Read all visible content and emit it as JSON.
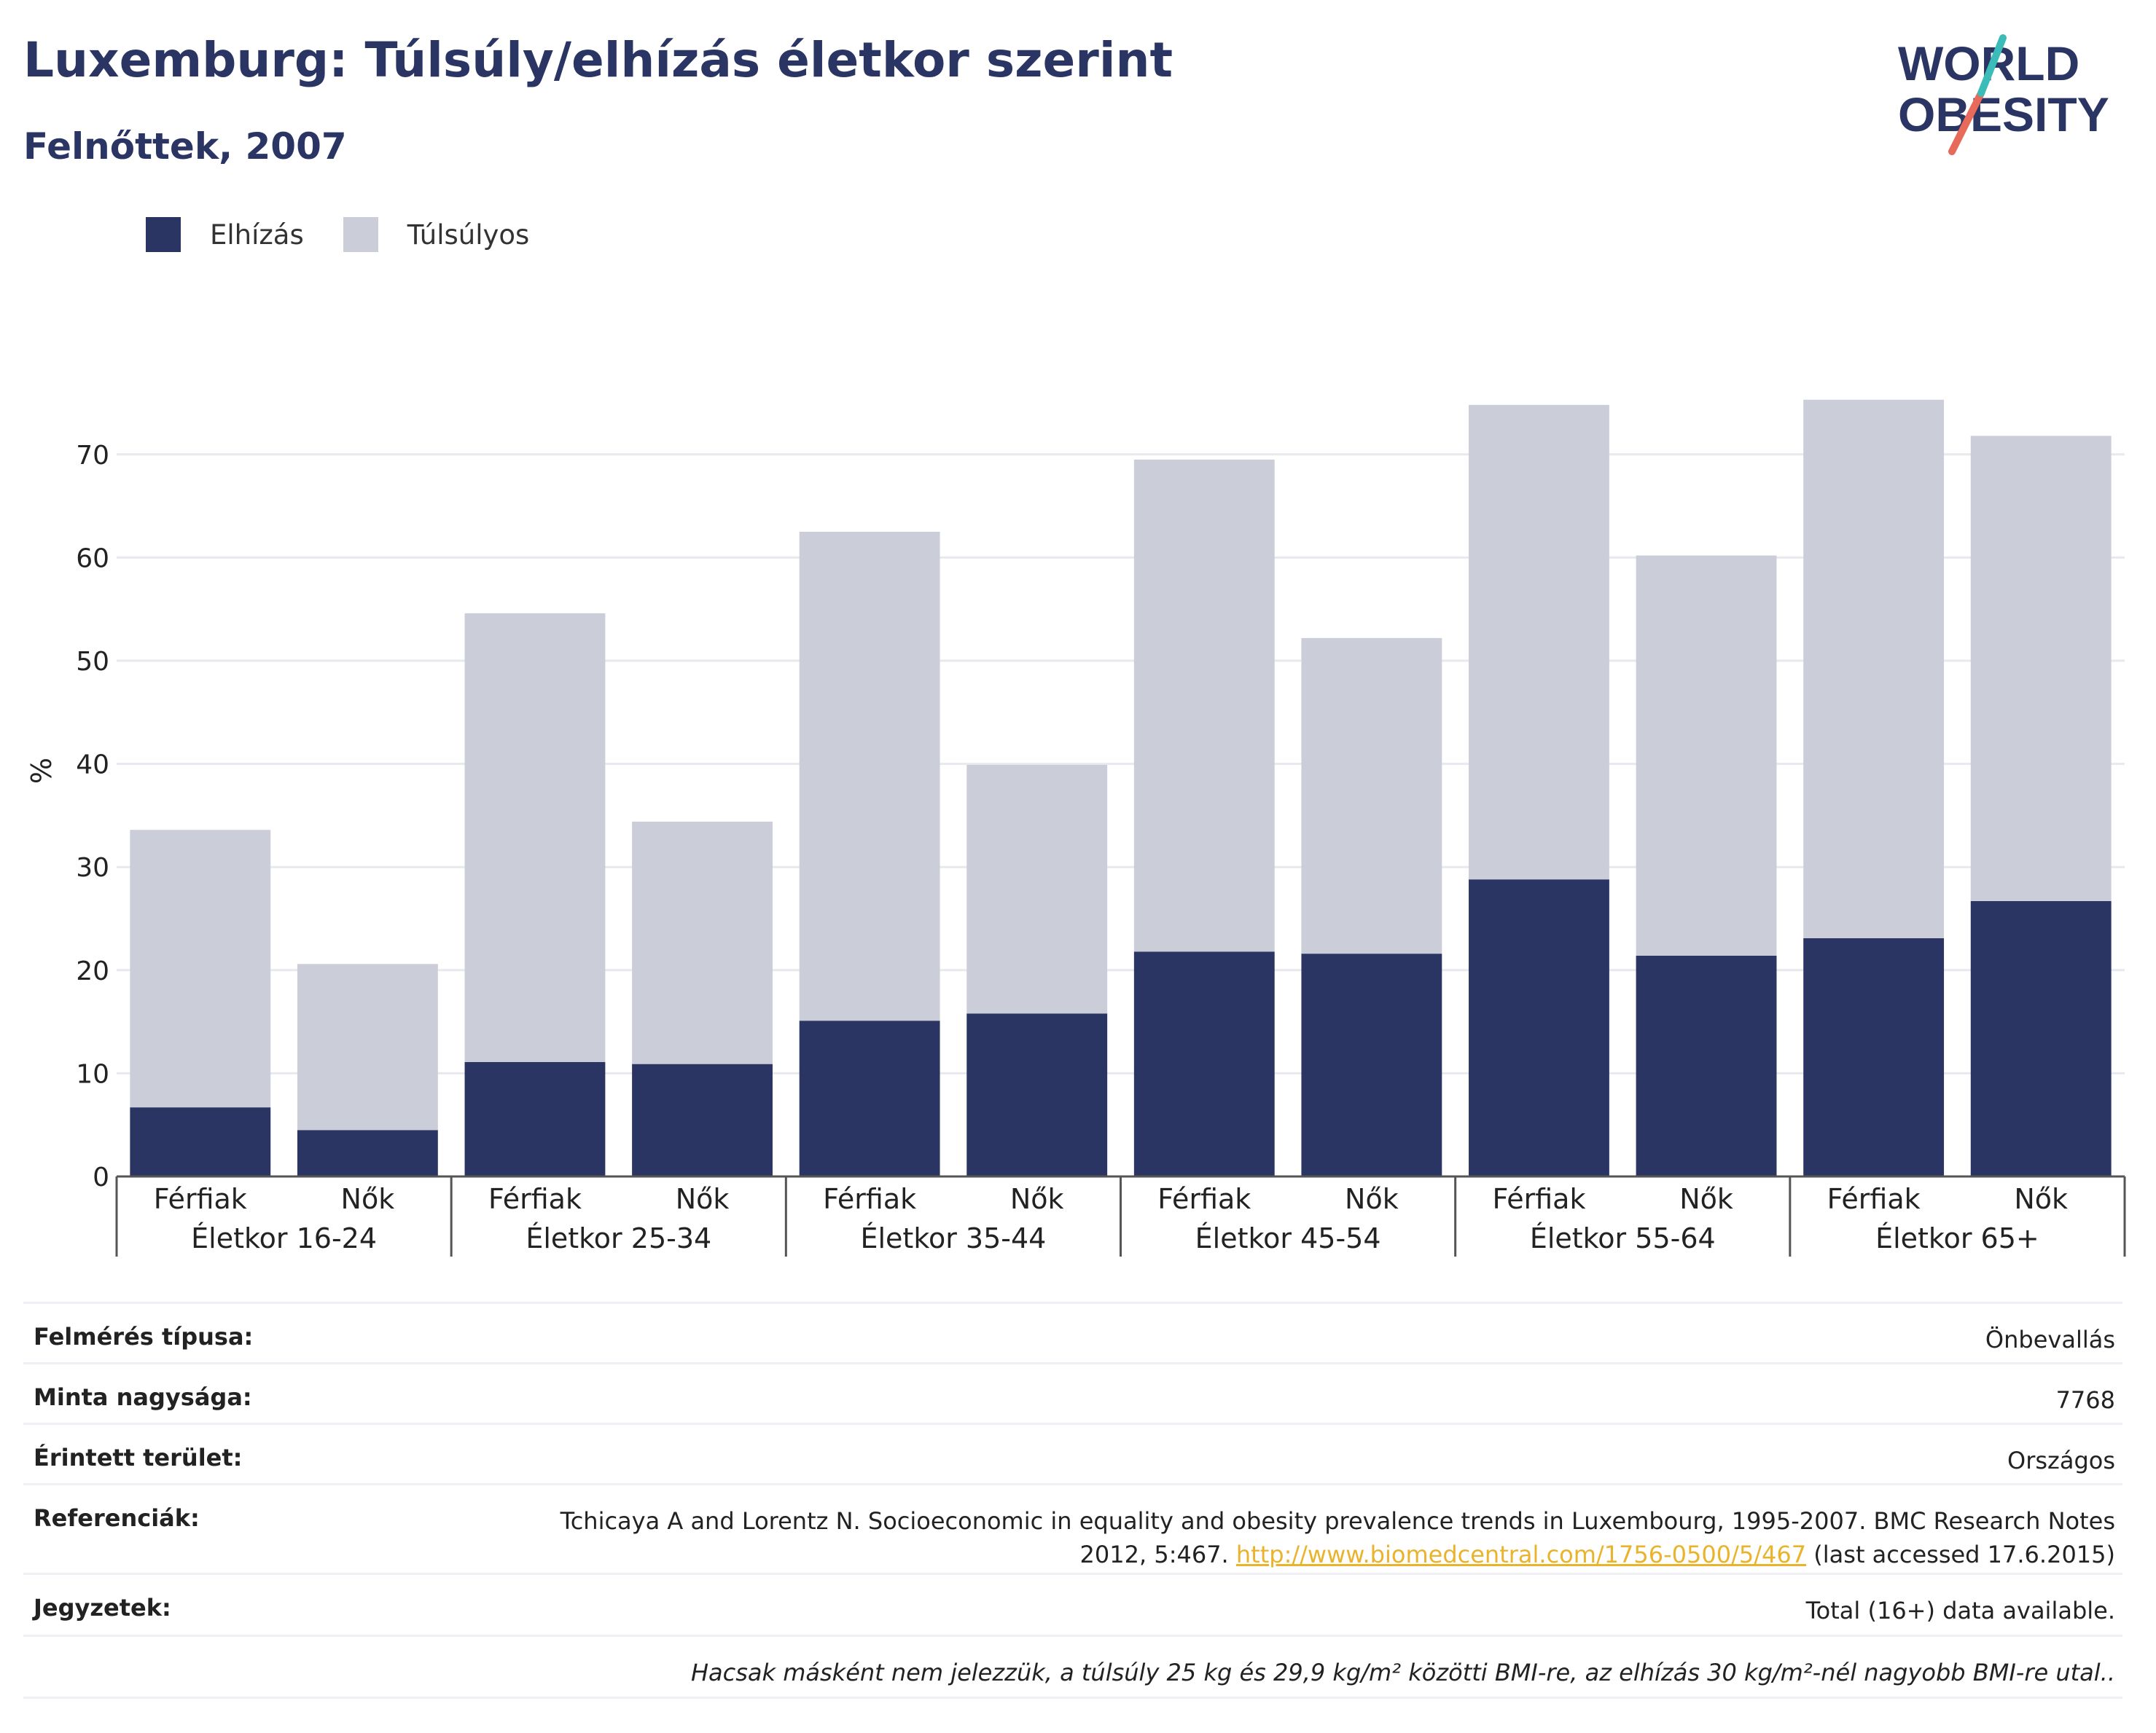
{
  "title": "Luxemburg: Túlsúly/elhízás életkor szerint",
  "subtitle": "Felnőttek, 2007",
  "logo": {
    "line1": "WORLD",
    "line2": "OBESITY"
  },
  "legend": [
    {
      "label": "Elhízás",
      "color": "#2b3564"
    },
    {
      "label": "Túlsúlyos",
      "color": "#cbcdd9"
    }
  ],
  "chart_data": {
    "type": "bar",
    "stacked": true,
    "ylabel": "%",
    "xlabel": "",
    "ylim": [
      0,
      80
    ],
    "yticks": [
      0,
      10,
      20,
      30,
      40,
      50,
      60,
      70
    ],
    "grid": true,
    "groups": [
      "Életkor 16-24",
      "Életkor 25-34",
      "Életkor 35-44",
      "Életkor 45-54",
      "Életkor 55-64",
      "Életkor 65+"
    ],
    "categories": [
      "Férfiak",
      "Nők",
      "Férfiak",
      "Nők",
      "Férfiak",
      "Nők",
      "Férfiak",
      "Nők",
      "Férfiak",
      "Nők",
      "Férfiak",
      "Nők"
    ],
    "series": [
      {
        "name": "Elhízás",
        "color": "#2b3564",
        "values": [
          6.7,
          4.5,
          11.1,
          10.9,
          15.1,
          15.8,
          21.8,
          21.6,
          28.8,
          21.4,
          23.1,
          26.7
        ]
      },
      {
        "name": "Túlsúlyos",
        "color": "#cbcdd9",
        "values": [
          26.9,
          16.1,
          43.5,
          23.5,
          47.4,
          24.1,
          47.7,
          30.6,
          46.0,
          38.8,
          52.2,
          45.1
        ]
      }
    ]
  },
  "meta": {
    "survey_type": {
      "label": "Felmérés típusa:",
      "value": "Önbevallás"
    },
    "sample_size": {
      "label": "Minta nagysága:",
      "value": "7768"
    },
    "area": {
      "label": "Érintett terület:",
      "value": "Országos"
    },
    "references": {
      "label": "Referenciák:",
      "text1": "Tchicaya A and Lorentz N. Socioeconomic in equality and obesity prevalence trends in Luxembourg, 1995-2007. BMC Research Notes",
      "text2": "2012, 5:467.",
      "link": "http://www.biomedcentral.com/1756-0500/5/467",
      "text3": "(last accessed 17.6.2015)"
    },
    "notes": {
      "label": "Jegyzetek:",
      "value": "Total (16+) data available."
    },
    "footnote": "Hacsak másként nem jelezzük, a túlsúly 25 kg és 29,9 kg/m² közötti BMI-re, az elhízás 30 kg/m²-nél nagyobb BMI-re utal.."
  }
}
